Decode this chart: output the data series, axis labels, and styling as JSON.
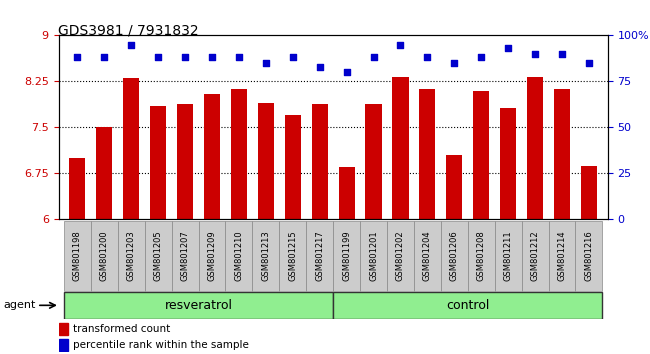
{
  "title": "GDS3981 / 7931832",
  "categories": [
    "GSM801198",
    "GSM801200",
    "GSM801203",
    "GSM801205",
    "GSM801207",
    "GSM801209",
    "GSM801210",
    "GSM801213",
    "GSM801215",
    "GSM801217",
    "GSM801199",
    "GSM801201",
    "GSM801202",
    "GSM801204",
    "GSM801206",
    "GSM801208",
    "GSM801211",
    "GSM801212",
    "GSM801214",
    "GSM801216"
  ],
  "bar_values": [
    7.0,
    7.5,
    8.3,
    7.85,
    7.88,
    8.05,
    8.12,
    7.9,
    7.7,
    7.88,
    6.85,
    7.88,
    8.32,
    8.12,
    7.05,
    8.1,
    7.82,
    8.32,
    8.12,
    6.87
  ],
  "percentile_values": [
    88,
    88,
    95,
    88,
    88,
    88,
    88,
    85,
    88,
    83,
    80,
    88,
    95,
    88,
    85,
    88,
    93,
    90,
    90,
    85
  ],
  "bar_color": "#cc0000",
  "percentile_color": "#0000cc",
  "ylim_left": [
    6,
    9
  ],
  "ylim_right": [
    0,
    100
  ],
  "yticks_left": [
    6,
    6.75,
    7.5,
    8.25,
    9
  ],
  "yticks_right": [
    0,
    25,
    50,
    75,
    100
  ],
  "ytick_labels_right": [
    "0",
    "25",
    "50",
    "75",
    "100%"
  ],
  "group1_label": "resveratrol",
  "group2_label": "control",
  "group1_count": 10,
  "group2_count": 10,
  "agent_label": "agent",
  "legend_bar_label": "transformed count",
  "legend_dot_label": "percentile rank within the sample",
  "grid_values": [
    6.75,
    7.5,
    8.25
  ],
  "plot_bg_color": "#ffffff",
  "cell_bg_color": "#cccccc",
  "group_color": "#90ee90"
}
